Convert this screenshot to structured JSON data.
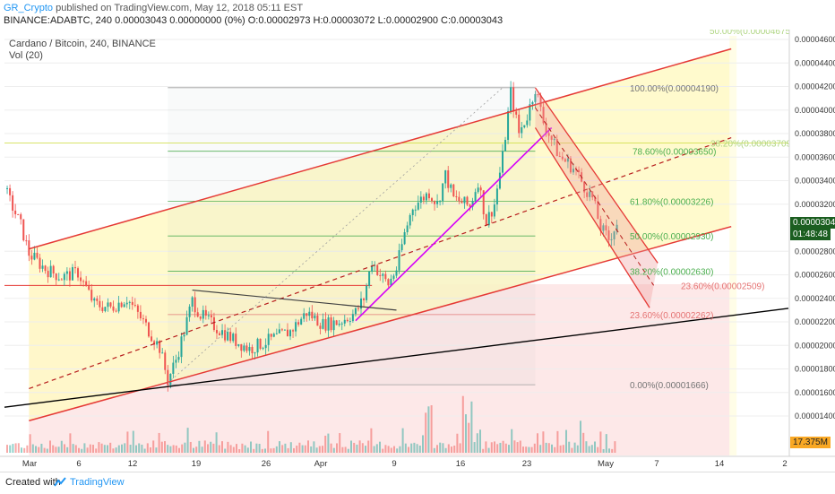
{
  "header": {
    "user": "GR_Crypto",
    "published_text": " published on TradingView.com, May 12, 2018 05:11 EST",
    "symbol_line": "BINANCE:ADABTC, 240  0.00003043 0.00000000 (0%) O:0.00002973 H:0.00003072 L:0.00002900 C:0.00003043"
  },
  "plot_title": "Cardano / Bitcoin, 240, BINANCE",
  "indicator_label": "Vol (20)",
  "price_axis": {
    "ticks": [
      "0.00004600",
      "0.00004400",
      "0.00004200",
      "0.00004000",
      "0.00003800",
      "0.00003600",
      "0.00003400",
      "0.00003200",
      "0.00002800",
      "0.00002600",
      "0.00002400",
      "0.00002200",
      "0.00002000",
      "0.00001800",
      "0.00001600",
      "0.00001400"
    ],
    "last_price": "0.00003043",
    "countdown": "01:48:48",
    "volume_last": "17.375M"
  },
  "time_axis": {
    "labels": [
      "Mar",
      "6",
      "12",
      "19",
      "26",
      "Apr",
      "9",
      "16",
      "23",
      "May",
      "7",
      "14",
      "2"
    ]
  },
  "fib_labels": {
    "f100": "100.00%(0.00004190)",
    "f786": "78.60%(0.00003650)",
    "f618": "61.80%(0.00003226)",
    "f50": "50.00%(0.00002930)",
    "f382": "38.20%(0.00002630)",
    "f236": "23.60%(0.00002262)",
    "f0": "0.00%(0.00001666)",
    "f382_right": "38.20%(0.00003709)",
    "f236_right": "23.60%(0.00002509)",
    "f50_top": "50.00%(0.00004675)"
  },
  "colors": {
    "up": "#26a69a",
    "down": "#ef5350",
    "channel": "#e53935",
    "channel_fill": "#fff9c4",
    "pink_zone": "#fde8e8",
    "magenta": "#d500f9",
    "trend_black": "#000000",
    "fib_green": "#4caf50",
    "fib_gray": "#9e9e9e"
  },
  "chart_data": {
    "type": "candlestick",
    "title": "Cardano / Bitcoin, 240, BINANCE",
    "symbol": "BINANCE:ADABTC",
    "interval": "240",
    "ylim": [
      1.35e-05,
      4.7e-05
    ],
    "x_range_dates": [
      "2018-02-26",
      "2018-06-02"
    ],
    "ohlc_last": {
      "open": 2.973e-05,
      "high": 3.072e-05,
      "low": 2.9e-05,
      "close": 3.043e-05
    },
    "price_path": [
      [
        "2018-02-26",
        3.33e-05
      ],
      [
        "2018-02-28",
        3.02e-05
      ],
      [
        "2018-03-01",
        2.78e-05
      ],
      [
        "2018-03-03",
        2.65e-05
      ],
      [
        "2018-03-05",
        2.58e-05
      ],
      [
        "2018-03-07",
        2.62e-05
      ],
      [
        "2018-03-09",
        2.35e-05
      ],
      [
        "2018-03-11",
        2.32e-05
      ],
      [
        "2018-03-13",
        2.4e-05
      ],
      [
        "2018-03-15",
        2.2e-05
      ],
      [
        "2018-03-17",
        1.98e-05
      ],
      [
        "2018-03-18",
        1.7e-05
      ],
      [
        "2018-03-19",
        1.88e-05
      ],
      [
        "2018-03-20",
        2.12e-05
      ],
      [
        "2018-03-21",
        2.38e-05
      ],
      [
        "2018-03-22",
        2.26e-05
      ],
      [
        "2018-03-24",
        2.15e-05
      ],
      [
        "2018-03-26",
        2.05e-05
      ],
      [
        "2018-03-28",
        1.97e-05
      ],
      [
        "2018-03-30",
        2.03e-05
      ],
      [
        "2018-04-02",
        2.12e-05
      ],
      [
        "2018-04-04",
        2.28e-05
      ],
      [
        "2018-04-06",
        2.18e-05
      ],
      [
        "2018-04-08",
        2.2e-05
      ],
      [
        "2018-04-10",
        2.28e-05
      ],
      [
        "2018-04-11",
        2.4e-05
      ],
      [
        "2018-04-12",
        2.72e-05
      ],
      [
        "2018-04-13",
        2.6e-05
      ],
      [
        "2018-04-14",
        2.52e-05
      ],
      [
        "2018-04-15",
        2.65e-05
      ],
      [
        "2018-04-16",
        2.95e-05
      ],
      [
        "2018-04-17",
        3.18e-05
      ],
      [
        "2018-04-19",
        3.3e-05
      ],
      [
        "2018-04-20",
        3.2e-05
      ],
      [
        "2018-04-21",
        3.45e-05
      ],
      [
        "2018-04-22",
        3.25e-05
      ],
      [
        "2018-04-24",
        3.18e-05
      ],
      [
        "2018-04-25",
        3.4e-05
      ],
      [
        "2018-04-26",
        3.05e-05
      ],
      [
        "2018-04-27",
        3.2e-05
      ],
      [
        "2018-04-28",
        3.6e-05
      ],
      [
        "2018-04-29",
        4.15e-05
      ],
      [
        "2018-04-30",
        3.8e-05
      ],
      [
        "2018-05-01",
        3.95e-05
      ],
      [
        "2018-05-02",
        4.19e-05
      ],
      [
        "2018-05-03",
        3.9e-05
      ],
      [
        "2018-05-04",
        3.75e-05
      ],
      [
        "2018-05-05",
        3.6e-05
      ],
      [
        "2018-05-06",
        3.55e-05
      ],
      [
        "2018-05-07",
        3.48e-05
      ],
      [
        "2018-05-08",
        3.35e-05
      ],
      [
        "2018-05-09",
        3.25e-05
      ],
      [
        "2018-05-10",
        3e-05
      ],
      [
        "2018-05-11",
        2.9e-05
      ],
      [
        "2018-05-12",
        3.04e-05
      ]
    ],
    "fibonacci_retracement": [
      {
        "level": "100.00%",
        "price": 4.19e-05
      },
      {
        "level": "78.60%",
        "price": 3.65e-05
      },
      {
        "level": "61.80%",
        "price": 3.226e-05
      },
      {
        "level": "50.00%",
        "price": 2.93e-05
      },
      {
        "level": "38.20%",
        "price": 2.63e-05
      },
      {
        "level": "23.60%",
        "price": 2.262e-05
      },
      {
        "level": "0.00%",
        "price": 1.666e-05
      }
    ],
    "fib_extension_levels": [
      {
        "level": "38.20%",
        "price": 3.709e-05
      },
      {
        "level": "23.60%",
        "price": 2.509e-05
      },
      {
        "level": "50.00%",
        "price": 4.675e-05
      }
    ],
    "volume_last": "17.375M"
  }
}
